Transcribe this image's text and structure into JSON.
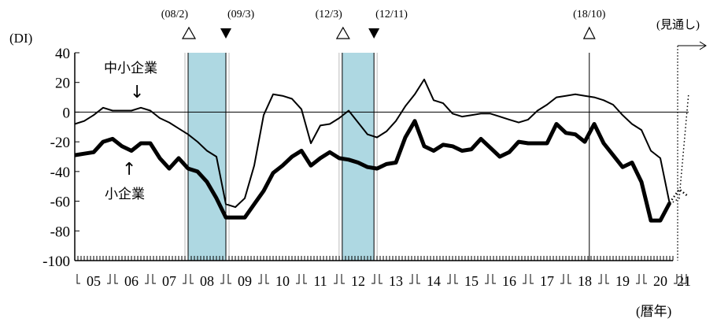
{
  "chart_data": {
    "type": "line",
    "y_unit": "(DI)",
    "x_unit": "(暦年)",
    "forecast_label": "(見通し)",
    "ylim": [
      -100,
      40
    ],
    "yticks": [
      40,
      20,
      0,
      -20,
      -40,
      -60,
      -80,
      -100
    ],
    "year_labels": [
      "05",
      "06",
      "07",
      "08",
      "09",
      "10",
      "11",
      "12",
      "13",
      "14",
      "15",
      "16",
      "17",
      "18",
      "19",
      "20",
      "21"
    ],
    "x_start": 2005.0,
    "x_end": 2021.0,
    "recessions": [
      {
        "peak_label": "(08/2)",
        "trough_label": "(09/3)",
        "start": 2008.0,
        "end": 2009.0
      },
      {
        "peak_label": "(12/3)",
        "trough_label": "(12/11)",
        "start": 2012.08,
        "end": 2012.92
      }
    ],
    "markers": [
      {
        "label": "(18/10)",
        "x": 2018.62
      }
    ],
    "colors": {
      "recession": "#aed8e2",
      "line": "#000000"
    },
    "series": [
      {
        "name": "中小企業",
        "width": 2,
        "x": [
          2005.0,
          2005.25,
          2005.5,
          2005.75,
          2006.0,
          2006.25,
          2006.5,
          2006.75,
          2007.0,
          2007.25,
          2007.5,
          2007.75,
          2008.0,
          2008.25,
          2008.5,
          2008.75,
          2009.0,
          2009.25,
          2009.5,
          2009.75,
          2010.0,
          2010.25,
          2010.5,
          2010.75,
          2011.0,
          2011.25,
          2011.5,
          2011.75,
          2012.0,
          2012.25,
          2012.5,
          2012.75,
          2013.0,
          2013.25,
          2013.5,
          2013.75,
          2014.0,
          2014.25,
          2014.5,
          2014.75,
          2015.0,
          2015.25,
          2015.5,
          2015.75,
          2016.0,
          2016.25,
          2016.5,
          2016.75,
          2017.0,
          2017.25,
          2017.5,
          2017.75,
          2018.0,
          2018.25,
          2018.5,
          2018.75,
          2019.0,
          2019.25,
          2019.5,
          2019.75,
          2020.0,
          2020.25,
          2020.5,
          2020.75
        ],
        "y": [
          -8,
          -6,
          -2,
          3,
          1,
          1,
          1,
          3,
          1,
          -4,
          -7,
          -11,
          -15,
          -20,
          -26,
          -30,
          -62,
          -64,
          -58,
          -36,
          -2,
          12,
          11,
          9,
          2,
          -21,
          -9,
          -8,
          -4,
          1,
          -7,
          -15,
          -17,
          -13,
          -6,
          4,
          12,
          22,
          8,
          6,
          -1,
          -3,
          -2,
          -1,
          -1,
          -3,
          -5,
          -7,
          -5,
          1,
          5,
          10,
          11,
          12,
          11,
          10,
          8,
          5,
          -2,
          -8,
          -12,
          -26,
          -31,
          -62
        ],
        "forecast_x": [
          2020.75,
          2021.0,
          2021.25
        ],
        "forecast_y": [
          -62,
          -58,
          13
        ]
      },
      {
        "name": "小企業",
        "width": 5,
        "x": [
          2005.0,
          2005.25,
          2005.5,
          2005.75,
          2006.0,
          2006.25,
          2006.5,
          2006.75,
          2007.0,
          2007.25,
          2007.5,
          2007.75,
          2008.0,
          2008.25,
          2008.5,
          2008.75,
          2009.0,
          2009.25,
          2009.5,
          2009.75,
          2010.0,
          2010.25,
          2010.5,
          2010.75,
          2011.0,
          2011.25,
          2011.5,
          2011.75,
          2012.0,
          2012.25,
          2012.5,
          2012.75,
          2013.0,
          2013.25,
          2013.5,
          2013.75,
          2014.0,
          2014.25,
          2014.5,
          2014.75,
          2015.0,
          2015.25,
          2015.5,
          2015.75,
          2016.0,
          2016.25,
          2016.5,
          2016.75,
          2017.0,
          2017.25,
          2017.5,
          2017.75,
          2018.0,
          2018.25,
          2018.5,
          2018.75,
          2019.0,
          2019.25,
          2019.5,
          2019.75,
          2020.0,
          2020.25,
          2020.5,
          2020.75
        ],
        "y": [
          -29,
          -28,
          -27,
          -20,
          -18,
          -23,
          -26,
          -21,
          -21,
          -31,
          -38,
          -31,
          -38,
          -40,
          -47,
          -58,
          -71,
          -71,
          -71,
          -62,
          -53,
          -41,
          -36,
          -30,
          -26,
          -36,
          -31,
          -27,
          -31,
          -32,
          -34,
          -37,
          -38,
          -35,
          -34,
          -17,
          -6,
          -23,
          -26,
          -22,
          -23,
          -26,
          -25,
          -18,
          -24,
          -30,
          -27,
          -20,
          -21,
          -21,
          -21,
          -8,
          -14,
          -15,
          -20,
          -8,
          -21,
          -29,
          -37,
          -34,
          -47,
          -73,
          -73,
          -61
        ],
        "forecast_x": [
          2020.75,
          2021.0,
          2021.25
        ],
        "forecast_y": [
          -61,
          -52,
          -57
        ]
      }
    ],
    "annotations": [
      {
        "text": "中小企業",
        "arrow": "↓",
        "series_index": 0
      },
      {
        "text": "小企業",
        "arrow": "↑",
        "series_index": 1
      }
    ]
  }
}
